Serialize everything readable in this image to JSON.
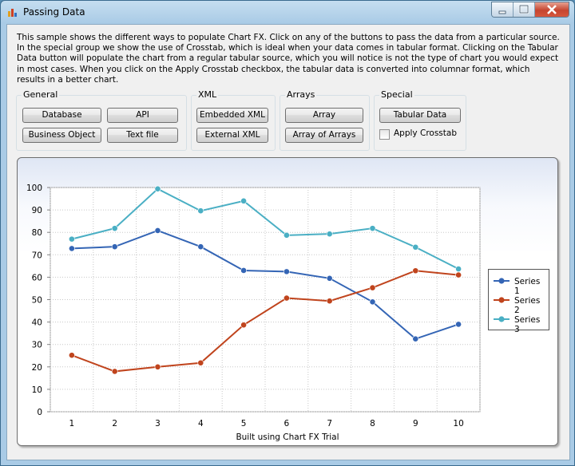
{
  "window": {
    "title": "Passing Data"
  },
  "description": "This sample shows the different ways to populate Chart FX. Click on any of the buttons to pass the data from a particular source. In the special group we show the use of Crosstab, which is ideal when your data comes in tabular format. Clicking on the Tabular Data button will populate the chart from a regular tabular source, which you will notice is not the type of chart you would expect in most cases. When you click on the Apply Crosstab checkbox, the tabular data is converted into columnar format, which results in a better chart.",
  "groups": {
    "general": {
      "label": "General",
      "database": "Database",
      "api": "API",
      "business_object": "Business Object",
      "text_file": "Text file"
    },
    "xml": {
      "label": "XML",
      "embedded": "Embedded XML",
      "external": "External XML"
    },
    "arrays": {
      "label": "Arrays",
      "array": "Array",
      "array_of_arrays": "Array of Arrays"
    },
    "special": {
      "label": "Special",
      "tabular": "Tabular Data",
      "crosstab": "Apply Crosstab",
      "crosstab_checked": false
    }
  },
  "chart_footer": "Built using Chart FX Trial",
  "chart_data": {
    "type": "line",
    "x": [
      1,
      2,
      3,
      4,
      5,
      6,
      7,
      8,
      9,
      10
    ],
    "series": [
      {
        "name": "Series 1",
        "color": "#3465b5",
        "values": [
          72.8,
          73.6,
          80.8,
          73.6,
          63.0,
          62.5,
          59.5,
          49.0,
          32.5,
          39.0
        ]
      },
      {
        "name": "Series 2",
        "color": "#c0441d",
        "values": [
          25.2,
          18.0,
          20.0,
          21.8,
          38.7,
          50.7,
          49.4,
          55.3,
          62.9,
          61.0
        ]
      },
      {
        "name": "Series 3",
        "color": "#4aafc4",
        "values": [
          77.0,
          81.8,
          99.4,
          89.6,
          94.0,
          78.7,
          79.3,
          81.8,
          73.4,
          63.7
        ]
      }
    ],
    "ylim": [
      0,
      100
    ],
    "yticks": [
      0,
      10,
      20,
      30,
      40,
      50,
      60,
      70,
      80,
      90,
      100
    ],
    "grid": true,
    "legend": "right"
  }
}
